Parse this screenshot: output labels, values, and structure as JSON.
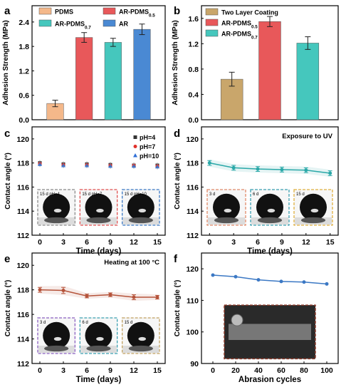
{
  "chart_data": [
    {
      "panel": "a",
      "type": "bar",
      "ylabel": "Adhesion Strength (MPa)",
      "ylim": [
        0,
        2.8
      ],
      "yticks": [
        "0.0",
        "0.6",
        "1.2",
        "1.8",
        "2.4"
      ],
      "categories": [
        "PDMS",
        "AR-PDMS",
        "AR-PDMS",
        "AR"
      ],
      "subscripts": [
        "",
        "0.5",
        "0.7",
        ""
      ],
      "values": [
        0.4,
        2.02,
        1.9,
        2.22
      ],
      "errors": [
        0.08,
        0.12,
        0.1,
        0.13
      ],
      "colors": [
        "#f4b88a",
        "#e8585a",
        "#45c7bd",
        "#4a89d3"
      ],
      "legend": [
        "PDMS",
        "AR-PDMS",
        "AR-PDMS",
        "AR"
      ],
      "legend_placement": "top"
    },
    {
      "panel": "b",
      "type": "bar",
      "ylabel": "Adhesion Strength (MPa)",
      "ylim": [
        0,
        1.8
      ],
      "yticks": [
        "0.0",
        "0.4",
        "0.8",
        "1.2",
        "1.6"
      ],
      "categories": [
        "Two Layer Coating",
        "AR-PDMS",
        "AR-PDMS"
      ],
      "subscripts": [
        "",
        "0.5",
        "0.7"
      ],
      "values": [
        0.64,
        1.55,
        1.21
      ],
      "errors": [
        0.11,
        0.08,
        0.1
      ],
      "colors": [
        "#c9a66b",
        "#e8585a",
        "#45c7bd"
      ],
      "legend": [
        "Two Layer Coating",
        "AR-PDMS",
        "AR-PDMS"
      ],
      "legend_placement": "top-left"
    },
    {
      "panel": "c",
      "type": "scatter",
      "xlabel": "Time (days)",
      "ylabel": "Contact angle (°)",
      "xlim": [
        -1,
        16
      ],
      "ylim": [
        112,
        121
      ],
      "xticks": [
        0,
        3,
        6,
        9,
        12,
        15
      ],
      "yticks": [
        112,
        114,
        116,
        118,
        120
      ],
      "series": [
        {
          "name": "pH=4",
          "marker": "square",
          "color": "#333333",
          "x": [
            0,
            3,
            6,
            9,
            12,
            15
          ],
          "y": [
            118.0,
            117.9,
            117.9,
            117.85,
            117.8,
            117.8
          ]
        },
        {
          "name": "pH=7",
          "marker": "circle",
          "color": "#e0302a",
          "x": [
            0,
            3,
            6,
            9,
            12,
            15
          ],
          "y": [
            117.95,
            117.85,
            117.85,
            117.8,
            117.8,
            117.75
          ]
        },
        {
          "name": "pH=10",
          "marker": "triangle",
          "color": "#2f6fd6",
          "x": [
            0,
            3,
            6,
            9,
            12,
            15
          ],
          "y": [
            117.9,
            117.8,
            117.8,
            117.75,
            117.75,
            117.7
          ]
        }
      ],
      "inset_labels": [
        "15 d pH=4",
        "15 d pH=7",
        "15 d pH=10"
      ],
      "legend_placement": "top-right"
    },
    {
      "panel": "d",
      "type": "line",
      "annotation": "Exposure to UV",
      "xlabel": "Time (days)",
      "ylabel": "Contact angle (°)",
      "xlim": [
        -1,
        16
      ],
      "ylim": [
        112,
        121
      ],
      "xticks": [
        0,
        3,
        6,
        9,
        12,
        15
      ],
      "yticks": [
        112,
        114,
        116,
        118,
        120
      ],
      "series": [
        {
          "color": "#2aa8a8",
          "x": [
            0,
            3,
            6,
            9,
            12,
            15
          ],
          "y": [
            118.0,
            117.6,
            117.5,
            117.45,
            117.4,
            117.15
          ],
          "err": [
            0.2,
            0.2,
            0.2,
            0.2,
            0.2,
            0.2
          ]
        }
      ],
      "inset_labels": [
        "3 d",
        "6 d",
        "15 d"
      ]
    },
    {
      "panel": "e",
      "type": "line",
      "annotation": "Heating at 100 °C",
      "xlabel": "Time (days)",
      "ylabel": "Contact angle (°)",
      "xlim": [
        -1,
        16
      ],
      "ylim": [
        112,
        121
      ],
      "xticks": [
        0,
        3,
        6,
        9,
        12,
        15
      ],
      "yticks": [
        112,
        114,
        116,
        118,
        120
      ],
      "series": [
        {
          "color": "#b5533a",
          "x": [
            0,
            3,
            6,
            9,
            12,
            15
          ],
          "y": [
            118.0,
            117.95,
            117.5,
            117.6,
            117.4,
            117.4
          ],
          "err": [
            0.2,
            0.25,
            0.15,
            0.15,
            0.2,
            0.15
          ]
        }
      ],
      "inset_labels": [
        "3 d",
        "6 d",
        "15 d"
      ]
    },
    {
      "panel": "f",
      "type": "line",
      "xlabel": "Abrasion cycles",
      "ylabel": "Contact angle (°)",
      "xlim": [
        -10,
        110
      ],
      "ylim": [
        90,
        125
      ],
      "xticks": [
        0,
        20,
        40,
        60,
        80,
        100
      ],
      "yticks": [
        90,
        100,
        110,
        120
      ],
      "series": [
        {
          "color": "#3b78c4",
          "x": [
            0,
            20,
            40,
            60,
            80,
            100
          ],
          "y": [
            118.0,
            117.5,
            116.5,
            116.0,
            115.8,
            115.2
          ]
        }
      ]
    }
  ]
}
